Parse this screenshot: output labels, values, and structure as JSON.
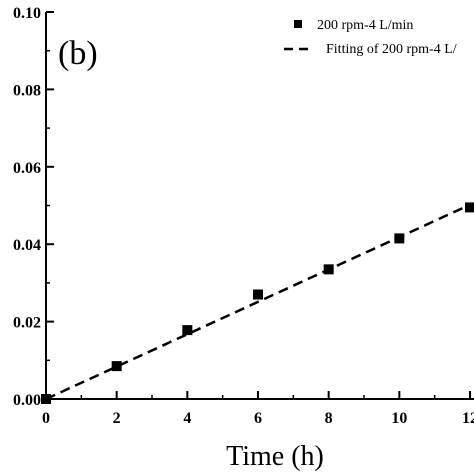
{
  "chart_data": {
    "type": "scatter",
    "panel_label": "(b)",
    "xlabel": "Time (h)",
    "ylabel": "",
    "xlim": [
      0,
      12
    ],
    "ylim": [
      0,
      0.1
    ],
    "x_ticks": [
      "0",
      "2",
      "4",
      "6",
      "8",
      "10",
      "12"
    ],
    "y_ticks": [
      "0.00",
      "0.02",
      "0.04",
      "0.06",
      "0.08",
      "0.10"
    ],
    "legend_position": "top-right",
    "series": [
      {
        "name": "200 rpm-4 L/min",
        "kind": "scatter",
        "marker": "square",
        "color": "#000000",
        "points": [
          {
            "x": 0,
            "y": 0.0
          },
          {
            "x": 2,
            "y": 0.0085
          },
          {
            "x": 4,
            "y": 0.0178
          },
          {
            "x": 6,
            "y": 0.027
          },
          {
            "x": 8,
            "y": 0.0335
          },
          {
            "x": 10,
            "y": 0.0415
          },
          {
            "x": 12,
            "y": 0.0495
          }
        ]
      },
      {
        "name": "Fitting of 200 rpm-4 L/",
        "kind": "line",
        "style": "dashed",
        "color": "#000000",
        "points": [
          {
            "x": 0,
            "y": 0.0
          },
          {
            "x": 12,
            "y": 0.0502
          }
        ]
      }
    ]
  }
}
